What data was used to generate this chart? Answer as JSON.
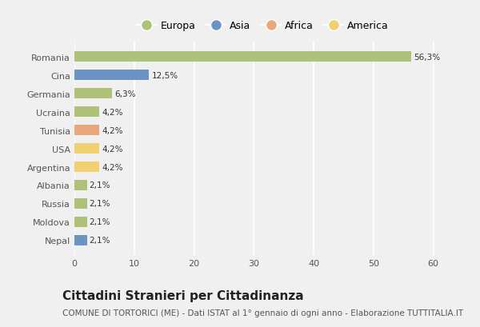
{
  "categories": [
    "Romania",
    "Cina",
    "Germania",
    "Ucraina",
    "Tunisia",
    "USA",
    "Argentina",
    "Albania",
    "Russia",
    "Moldova",
    "Nepal"
  ],
  "values": [
    56.3,
    12.5,
    6.3,
    4.2,
    4.2,
    4.2,
    4.2,
    2.1,
    2.1,
    2.1,
    2.1
  ],
  "labels": [
    "56,3%",
    "12,5%",
    "6,3%",
    "4,2%",
    "4,2%",
    "4,2%",
    "4,2%",
    "2,1%",
    "2,1%",
    "2,1%",
    "2,1%"
  ],
  "colors": [
    "#adc178",
    "#6b93c4",
    "#adc178",
    "#adc178",
    "#e8a87c",
    "#f0d070",
    "#f0d070",
    "#adc178",
    "#adc178",
    "#adc178",
    "#6b93c4"
  ],
  "legend_labels": [
    "Europa",
    "Asia",
    "Africa",
    "America"
  ],
  "legend_colors": [
    "#adc178",
    "#6b93c4",
    "#e8a87c",
    "#f0d070"
  ],
  "title": "Cittadini Stranieri per Cittadinanza",
  "subtitle": "COMUNE DI TORTORICI (ME) - Dati ISTAT al 1° gennaio di ogni anno - Elaborazione TUTTITALIA.IT",
  "xlim": [
    0,
    63
  ],
  "xticks": [
    0,
    10,
    20,
    30,
    40,
    50,
    60
  ],
  "bg_color": "#f0f0f0",
  "plot_bg_color": "#f0f0f0",
  "grid_color": "#ffffff",
  "title_fontsize": 11,
  "subtitle_fontsize": 7.5,
  "label_fontsize": 7.5,
  "tick_fontsize": 8
}
